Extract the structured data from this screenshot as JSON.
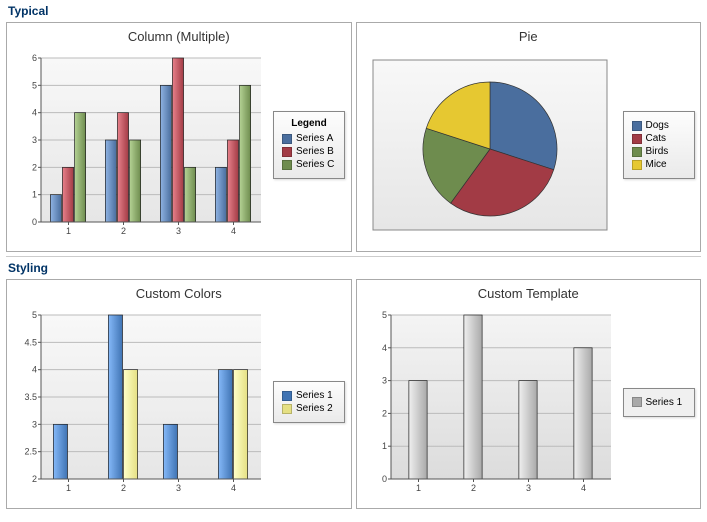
{
  "section_typical": "Typical",
  "section_styling": "Styling",
  "column_multiple": {
    "title": "Column (Multiple)",
    "type": "bar",
    "categories": [
      "1",
      "2",
      "3",
      "4"
    ],
    "series": [
      {
        "name": "Series A",
        "color": "#4a6e9e",
        "values": [
          1,
          3,
          5,
          2
        ]
      },
      {
        "name": "Series B",
        "color": "#a23b45",
        "values": [
          2,
          4,
          6,
          3
        ]
      },
      {
        "name": "Series C",
        "color": "#6e8c4e",
        "values": [
          4,
          3,
          2,
          5
        ]
      }
    ],
    "legend_title": "Legend",
    "ylim": [
      0,
      6
    ],
    "ytick_step": 1,
    "grid_color": "#bbbbbb",
    "background_start": "#f8f8f8",
    "background_end": "#e6e6e6",
    "bar_group_width": 0.66,
    "label_fontsize": 9
  },
  "pie_chart": {
    "title": "Pie",
    "type": "pie",
    "items": [
      {
        "label": "Dogs",
        "value": 30,
        "color": "#4a6e9e"
      },
      {
        "label": "Cats",
        "value": 30,
        "color": "#a23b45"
      },
      {
        "label": "Birds",
        "value": 20,
        "color": "#6e8c4e"
      },
      {
        "label": "Mice",
        "value": 20,
        "color": "#e6c831"
      }
    ],
    "background_start": "#f8f8f8",
    "background_end": "#e6e6e6",
    "stroke_color": "#333333",
    "label_fontsize": 10
  },
  "custom_colors": {
    "title": "Custom Colors",
    "type": "bar",
    "categories": [
      "1",
      "2",
      "3",
      "4"
    ],
    "series": [
      {
        "name": "Series 1",
        "color": "#3f73b3",
        "values": [
          3,
          5,
          3,
          4
        ]
      },
      {
        "name": "Series 2",
        "color": "#e5e083",
        "values": [
          2,
          4,
          2,
          4
        ]
      }
    ],
    "ylim": [
      2,
      5
    ],
    "ytick_step": 0.5,
    "grid_color": "#bbbbbb",
    "background_start": "#f8f8f8",
    "background_end": "#e6e6e6",
    "bar_group_width": 0.55,
    "label_fontsize": 9
  },
  "custom_template": {
    "title": "Custom Template",
    "type": "bar",
    "categories": [
      "1",
      "2",
      "3",
      "4"
    ],
    "series": [
      {
        "name": "Series 1",
        "color": "#a9a9a9",
        "values": [
          3,
          5,
          3,
          4
        ]
      }
    ],
    "legend_box_bg": "#f0f0f0",
    "ylim": [
      0,
      5
    ],
    "ytick_step": 1,
    "grid_color": "#bbbbbb",
    "background_start": "#f4f4f4",
    "background_end": "#dcdcdc",
    "bar_group_width": 0.35,
    "label_fontsize": 9
  }
}
